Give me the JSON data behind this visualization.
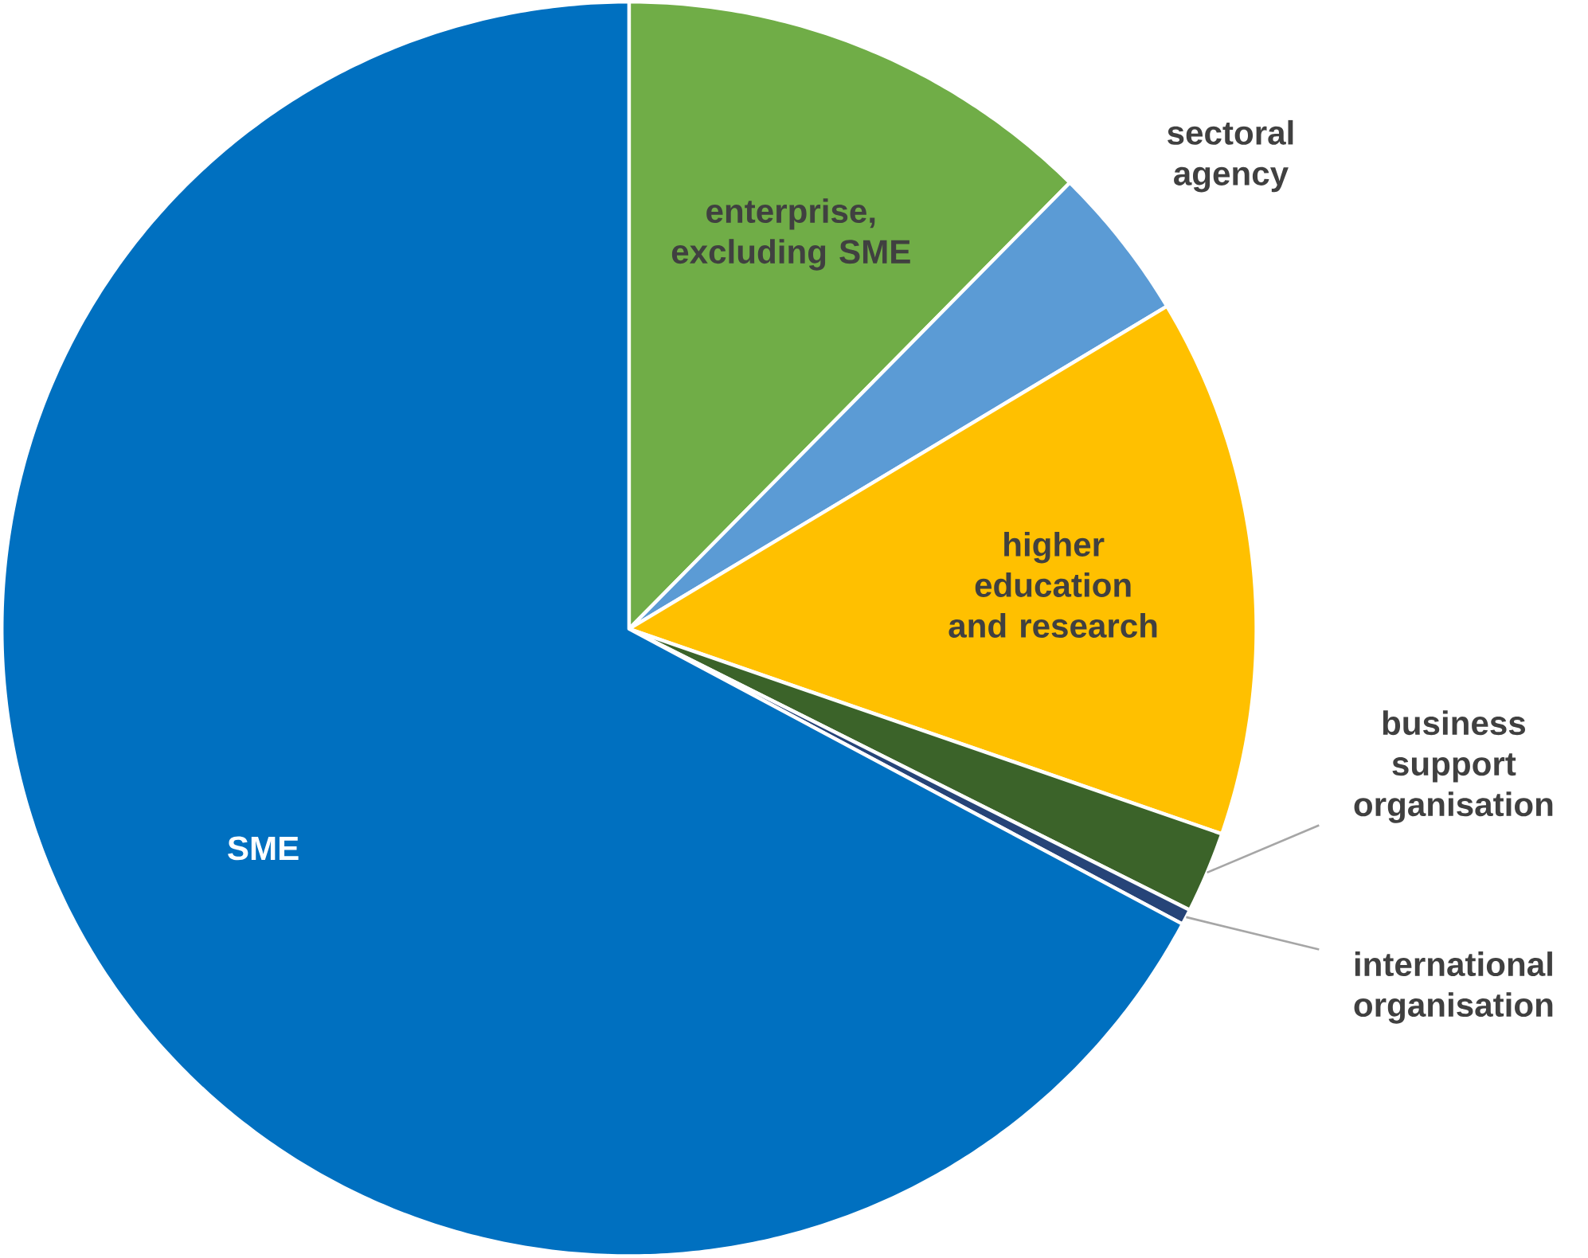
{
  "chart_data": {
    "type": "pie",
    "categories": [
      "enterprise, excluding SME",
      "sectoral agency",
      "higher education and research",
      "business support organisation",
      "international organisation",
      "SME"
    ],
    "values": [
      12.4,
      4.0,
      13.9,
      2.1,
      0.4,
      67.2
    ],
    "colors": [
      "#70ad47",
      "#5b9bd5",
      "#ffc000",
      "#3b6329",
      "#264478",
      "#0070c0"
    ]
  }
}
